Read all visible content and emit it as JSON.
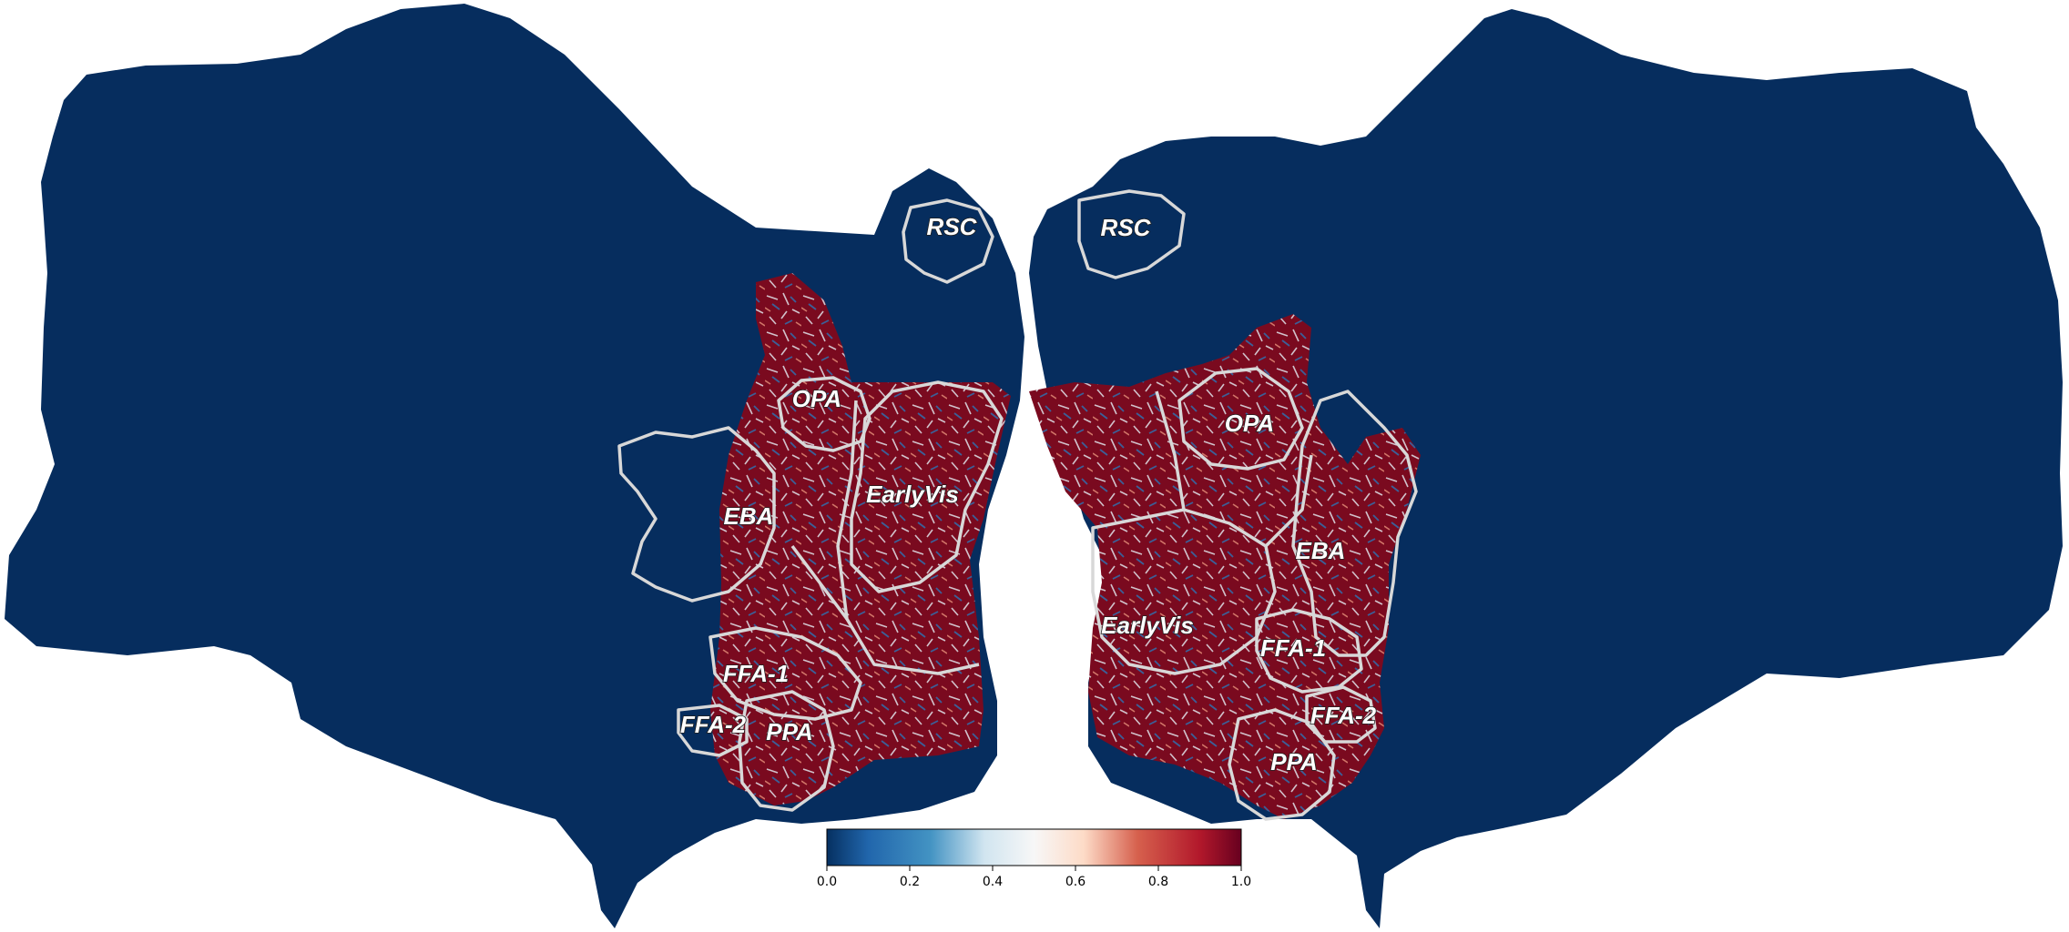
{
  "colors": {
    "background_cortex": "#062d5e",
    "high_value": "#7a0a1f",
    "roi_outline": "#d8d8d8",
    "colormap": "RdBu_r"
  },
  "left_hemisphere": {
    "labels": {
      "rsc": "RSC",
      "opa": "OPA",
      "eba": "EBA",
      "early_vis": "EarlyVis",
      "ffa1": "FFA-1",
      "ffa2": "FFA-2",
      "ppa": "PPA"
    }
  },
  "right_hemisphere": {
    "labels": {
      "rsc": "RSC",
      "opa": "OPA",
      "eba": "EBA",
      "early_vis": "EarlyVis",
      "ffa1": "FFA-1",
      "ffa2": "FFA-2",
      "ppa": "PPA"
    }
  },
  "colorbar": {
    "min": 0.0,
    "max": 1.0,
    "ticks": [
      "0.0",
      "0.2",
      "0.4",
      "0.6",
      "0.8",
      "1.0"
    ]
  }
}
